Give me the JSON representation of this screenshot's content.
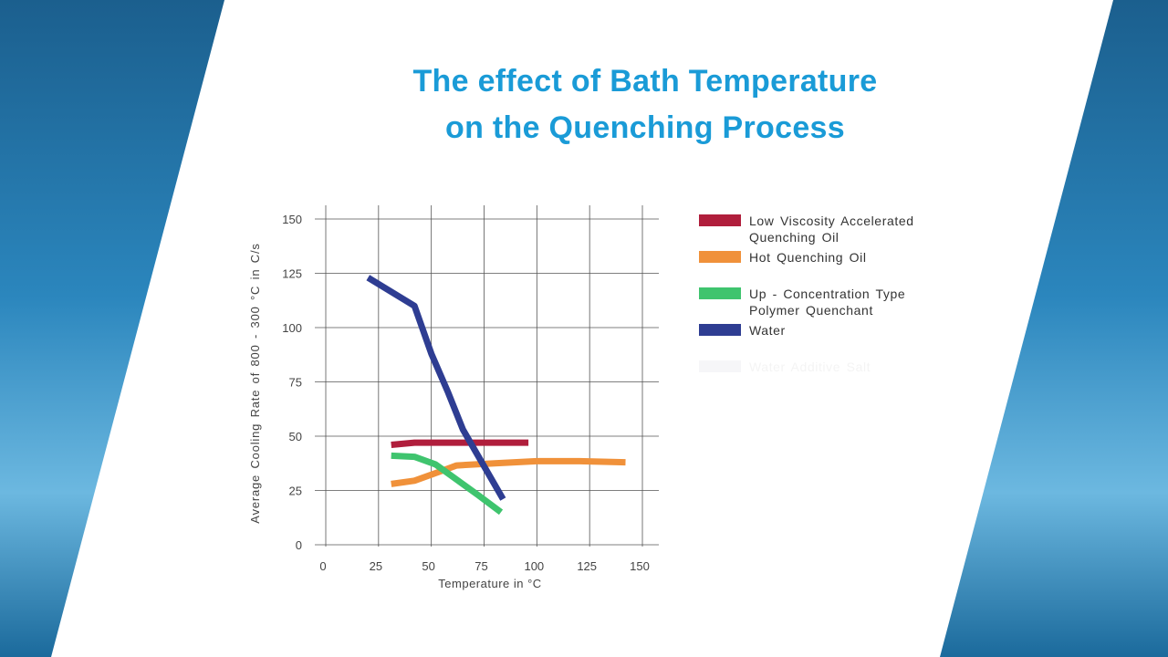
{
  "slide": {
    "title_line1": "The effect of Bath Temperature",
    "title_line2": "on the Quenching Process",
    "colors": {
      "title": "#1a9bd7",
      "frame_blue": "#1d6fa3"
    }
  },
  "chart_data": {
    "type": "line",
    "title": "The effect of Bath Temperature on the Quenching Process",
    "xlabel": "Temperature in °C",
    "ylabel": "Average Cooling Rate of 800 - 300 °C in C/s",
    "xlim": [
      0,
      150
    ],
    "ylim": [
      0,
      150
    ],
    "xticks": [
      "0",
      "25",
      "50",
      "75",
      "100",
      "125",
      "150"
    ],
    "yticks": [
      "0",
      "25",
      "50",
      "75",
      "100",
      "125",
      "150"
    ],
    "grid": true,
    "legend_placement": "right",
    "series": [
      {
        "name": "Low Viscosity Accelerated Quenching Oil",
        "color": "#b01e3c",
        "points": [
          [
            31,
            46
          ],
          [
            42,
            47
          ],
          [
            96,
            47
          ]
        ]
      },
      {
        "name": "Hot Quenching Oil",
        "color": "#f0913a",
        "points": [
          [
            31,
            28
          ],
          [
            42,
            29.5
          ],
          [
            52,
            33
          ],
          [
            62,
            36.5
          ],
          [
            80,
            37.5
          ],
          [
            100,
            38.5
          ],
          [
            120,
            38.5
          ],
          [
            142,
            38
          ]
        ]
      },
      {
        "name": "Up - Concentration Type Polymer Quenchant",
        "color": "#3fc46e",
        "points": [
          [
            31,
            41
          ],
          [
            42,
            40.5
          ],
          [
            52,
            37
          ],
          [
            62,
            30
          ],
          [
            72,
            23
          ],
          [
            83,
            15
          ]
        ]
      },
      {
        "name": "Water",
        "color": "#2e3d92",
        "points": [
          [
            20,
            123
          ],
          [
            42,
            110
          ],
          [
            50,
            88
          ],
          [
            58,
            70
          ],
          [
            65,
            53
          ],
          [
            84,
            21
          ]
        ]
      }
    ],
    "extra_legend_entries": [
      {
        "name": "Water Additive Salt",
        "color": "#f6f6f8",
        "faded": true
      }
    ]
  }
}
